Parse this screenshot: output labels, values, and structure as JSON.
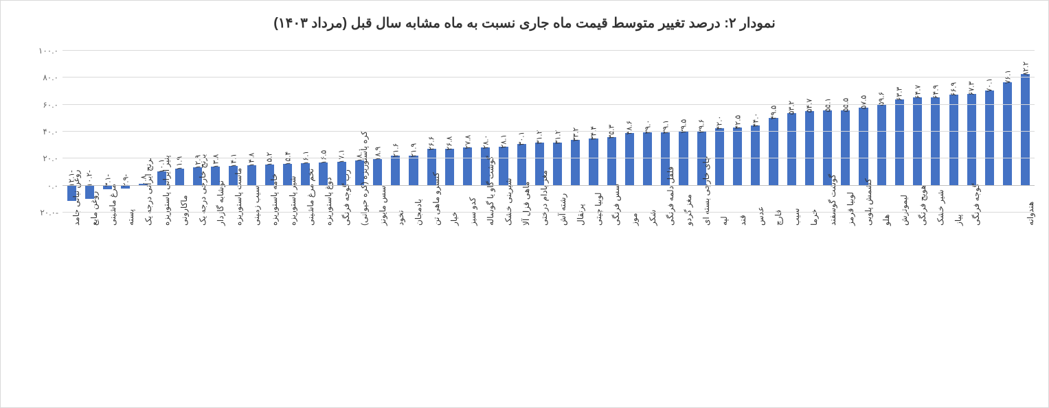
{
  "chart": {
    "type": "bar",
    "title": "نمودار ۲: درصد تغییر متوسط قیمت ماه جاری نسبت به ماه مشابه سال قبل (مرداد ۱۴۰۳)",
    "title_fontsize": 20,
    "background_color": "#ffffff",
    "grid_color": "#d9d9d9",
    "zero_line_color": "#bfbfbf",
    "bar_color": "#4472c4",
    "label_fontsize": 12,
    "value_label_fontsize": 11,
    "ylim": [
      -20,
      100
    ],
    "ytick_step": 20,
    "yticks": [
      {
        "v": 100,
        "label": "۱۰۰.۰"
      },
      {
        "v": 80,
        "label": "۸۰.۰"
      },
      {
        "v": 60,
        "label": "۶۰.۰"
      },
      {
        "v": 40,
        "label": "۴۰.۰"
      },
      {
        "v": 20,
        "label": "۲۰.۰"
      },
      {
        "v": 0,
        "label": "۰.۰"
      },
      {
        "v": -20,
        "label": "-۲۰.۰"
      }
    ],
    "data": [
      {
        "cat": "روغن نباتی جامد",
        "val": -12.1,
        "vlabel": "-۱۲.۱"
      },
      {
        "cat": "روغن مایع",
        "val": -10.2,
        "vlabel": "-۱۰.۲"
      },
      {
        "cat": "مرغ ماشینی",
        "val": -3.1,
        "vlabel": "-۳.۱"
      },
      {
        "cat": "پسته",
        "val": -2.9,
        "vlabel": "-۲.۹"
      },
      {
        "cat": "برنج ایرانی درجه یک",
        "val": 0.8,
        "vlabel": "۰.۸"
      },
      {
        "cat": "پنیر ایرانی پاستوریزه",
        "val": 10.1,
        "vlabel": "۱۰.۱"
      },
      {
        "cat": "ماکارونی",
        "val": 11.9,
        "vlabel": "۱۱.۹"
      },
      {
        "cat": "برنج خارجی درجه یک",
        "val": 12.9,
        "vlabel": "۱۲.۹"
      },
      {
        "cat": "نوشابه گازدار",
        "val": 13.8,
        "vlabel": "۱۳.۸"
      },
      {
        "cat": "ماست پاستوریزه",
        "val": 14.1,
        "vlabel": "۱۴.۱"
      },
      {
        "cat": "سیب زمینی",
        "val": 14.8,
        "vlabel": "۱۴.۸"
      },
      {
        "cat": "خامه پاستوریزه",
        "val": 15.2,
        "vlabel": "۱۵.۲"
      },
      {
        "cat": "شیر پاستوریزه",
        "val": 15.4,
        "vlabel": "۱۵.۴"
      },
      {
        "cat": "تخم مرغ ماشینی",
        "val": 16.1,
        "vlabel": "۱۶.۱"
      },
      {
        "cat": "دوغ پاستوریزه",
        "val": 16.5,
        "vlabel": "۱۶.۵"
      },
      {
        "cat": "رب گوجه فرنگی",
        "val": 17.1,
        "vlabel": "۱۷.۱"
      },
      {
        "cat": "کره پاستوریزه (کره حیوانی)",
        "val": 18.0,
        "vlabel": "۱۸.۰"
      },
      {
        "cat": "سس مایونز",
        "val": 18.9,
        "vlabel": "۱۸.۹"
      },
      {
        "cat": "نخود",
        "val": 21.6,
        "vlabel": "۲۱.۶"
      },
      {
        "cat": "بادمجان",
        "val": 21.9,
        "vlabel": "۲۱.۹"
      },
      {
        "cat": "کنسرو ماهی تن",
        "val": 26.6,
        "vlabel": "۲۶.۶"
      },
      {
        "cat": "خیار",
        "val": 26.8,
        "vlabel": "۲۶.۸"
      },
      {
        "cat": "کدو سبز",
        "val": 27.8,
        "vlabel": "۲۷.۸"
      },
      {
        "cat": "گوشت گاو یا گوساله",
        "val": 28.0,
        "vlabel": "۲۸.۰"
      },
      {
        "cat": "شیرینی خشک",
        "val": 28.1,
        "vlabel": "۲۸.۱"
      },
      {
        "cat": "ماهی قزل آلا",
        "val": 30.1,
        "vlabel": "۳۰.۱"
      },
      {
        "cat": "مغز بادام درختی",
        "val": 31.2,
        "vlabel": "۳۱.۲"
      },
      {
        "cat": "رشته آش",
        "val": 31.2,
        "vlabel": "۳۱.۲"
      },
      {
        "cat": "پرتقال",
        "val": 33.2,
        "vlabel": "۳۳.۲"
      },
      {
        "cat": "لوبیا چیتی",
        "val": 34.4,
        "vlabel": "۳۴.۴"
      },
      {
        "cat": "سس فرنگی",
        "val": 35.3,
        "vlabel": "۳۵.۳"
      },
      {
        "cat": "موز",
        "val": 38.6,
        "vlabel": "۳۸.۶"
      },
      {
        "cat": "شکر",
        "val": 39.0,
        "vlabel": "۳۹.۰"
      },
      {
        "cat": "فلفل دلمه فرنگی",
        "val": 39.1,
        "vlabel": "۳۹.۱"
      },
      {
        "cat": "مغز گردو",
        "val": 39.5,
        "vlabel": "۳۹.۵"
      },
      {
        "cat": "چای خارجی بسته ای",
        "val": 39.6,
        "vlabel": "۳۹.۶"
      },
      {
        "cat": "لپه",
        "val": 42.0,
        "vlabel": "۴۲.۰"
      },
      {
        "cat": "قند",
        "val": 42.5,
        "vlabel": "۴۲.۵"
      },
      {
        "cat": "عدس",
        "val": 44.0,
        "vlabel": "۴۴.۰"
      },
      {
        "cat": "قارچ",
        "val": 49.5,
        "vlabel": "۴۹.۵"
      },
      {
        "cat": "سیب",
        "val": 53.2,
        "vlabel": "۵۳.۲"
      },
      {
        "cat": "خرما",
        "val": 54.7,
        "vlabel": "۵۴.۷"
      },
      {
        "cat": "گوشت گوسفند",
        "val": 55.1,
        "vlabel": "۵۵.۱"
      },
      {
        "cat": "لوبیا قرمز",
        "val": 55.5,
        "vlabel": "۵۵.۵"
      },
      {
        "cat": "کشمش پلویی",
        "val": 57.5,
        "vlabel": "۵۷.۵"
      },
      {
        "cat": "هلو",
        "val": 59.6,
        "vlabel": "۵۹.۶"
      },
      {
        "cat": "لیموترش",
        "val": 63.3,
        "vlabel": "۶۳.۳"
      },
      {
        "cat": "هویج فرنگی",
        "val": 64.7,
        "vlabel": "۶۴.۷"
      },
      {
        "cat": "شیر خشک",
        "val": 64.9,
        "vlabel": "۶۴.۹"
      },
      {
        "cat": "پیاز",
        "val": 66.9,
        "vlabel": "۶۶.۹"
      },
      {
        "cat": "گوجه فرنگی",
        "val": 67.3,
        "vlabel": "۶۷.۳"
      },
      {
        "cat": "",
        "val": 70.1,
        "vlabel": "۷۰.۱"
      },
      {
        "cat": "",
        "val": 76.1,
        "vlabel": "۷۶.۱"
      },
      {
        "cat": "هندوانه",
        "val": 82.2,
        "vlabel": "۸۲.۲"
      }
    ]
  }
}
